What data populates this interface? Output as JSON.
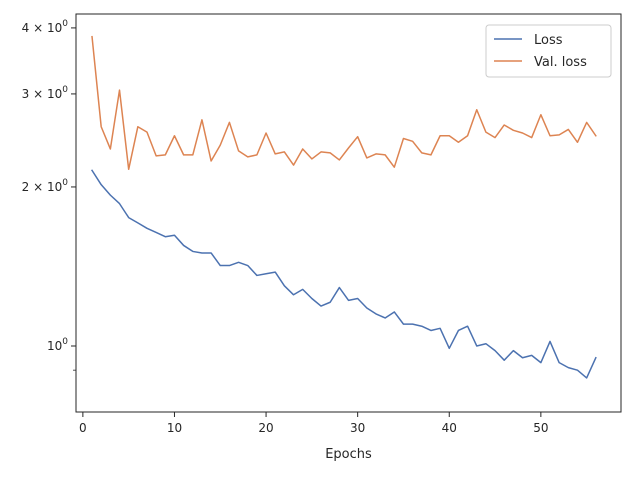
{
  "chart_data": {
    "type": "line",
    "xlabel": "Epochs",
    "ylabel": "",
    "yscale": "log",
    "xlim": [
      -0.75,
      58.75
    ],
    "ylim": [
      0.75,
      4.25
    ],
    "grid": false,
    "legend_position": "top-right",
    "x_ticks": [
      0,
      10,
      20,
      30,
      40,
      50
    ],
    "x_tick_labels": [
      "0",
      "10",
      "20",
      "30",
      "40",
      "50"
    ],
    "y_major_ticks": [
      1,
      2,
      3,
      4
    ],
    "y_major_tick_labels": {
      "1": {
        "mantissa": "10",
        "exp": "0"
      },
      "2": {
        "mantissa": "2 × 10",
        "exp": "0"
      },
      "3": {
        "mantissa": "3 × 10",
        "exp": "0"
      },
      "4": {
        "mantissa": "4 × 10",
        "exp": "0"
      }
    },
    "y_minor_ticks": [
      0.9
    ],
    "x": [
      1,
      2,
      3,
      4,
      5,
      6,
      7,
      8,
      9,
      10,
      11,
      12,
      13,
      14,
      15,
      16,
      17,
      18,
      19,
      20,
      21,
      22,
      23,
      24,
      25,
      26,
      27,
      28,
      29,
      30,
      31,
      32,
      33,
      34,
      35,
      36,
      37,
      38,
      39,
      40,
      41,
      42,
      43,
      44,
      45,
      46,
      47,
      48,
      49,
      50,
      51,
      52,
      53,
      54,
      55,
      56
    ],
    "series": [
      {
        "name": "Loss",
        "color": "#4c72b0",
        "values": [
          2.15,
          2.02,
          1.93,
          1.86,
          1.75,
          1.71,
          1.67,
          1.64,
          1.61,
          1.62,
          1.55,
          1.51,
          1.5,
          1.5,
          1.42,
          1.42,
          1.44,
          1.42,
          1.36,
          1.37,
          1.38,
          1.3,
          1.25,
          1.28,
          1.23,
          1.19,
          1.21,
          1.29,
          1.22,
          1.23,
          1.18,
          1.15,
          1.13,
          1.16,
          1.1,
          1.1,
          1.09,
          1.07,
          1.08,
          0.99,
          1.07,
          1.09,
          1.0,
          1.01,
          0.98,
          0.94,
          0.98,
          0.95,
          0.96,
          0.93,
          1.02,
          0.93,
          0.91,
          0.9,
          0.87,
          0.95
        ]
      },
      {
        "name": "Val. loss",
        "color": "#dd8452",
        "values": [
          3.85,
          2.6,
          2.36,
          3.05,
          2.16,
          2.6,
          2.54,
          2.29,
          2.3,
          2.5,
          2.3,
          2.3,
          2.68,
          2.24,
          2.4,
          2.65,
          2.34,
          2.28,
          2.3,
          2.53,
          2.31,
          2.33,
          2.2,
          2.36,
          2.26,
          2.33,
          2.32,
          2.25,
          2.37,
          2.49,
          2.27,
          2.31,
          2.3,
          2.18,
          2.47,
          2.44,
          2.32,
          2.3,
          2.5,
          2.5,
          2.43,
          2.5,
          2.8,
          2.54,
          2.48,
          2.62,
          2.56,
          2.53,
          2.48,
          2.74,
          2.5,
          2.51,
          2.57,
          2.43,
          2.65,
          2.5
        ]
      }
    ]
  }
}
